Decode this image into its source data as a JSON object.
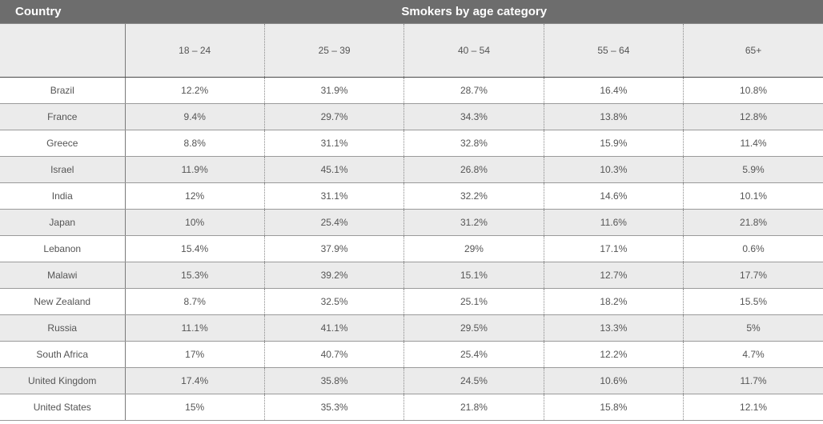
{
  "chart_data": {
    "type": "table",
    "title": "Smokers by age category",
    "row_header_label": "Country",
    "columns": [
      "18 – 24",
      "25 – 39",
      "40 – 54",
      "55 – 64",
      "65+"
    ],
    "rows": [
      {
        "country": "Brazil",
        "values": [
          "12.2%",
          "31.9%",
          "28.7%",
          "16.4%",
          "10.8%"
        ]
      },
      {
        "country": "France",
        "values": [
          "9.4%",
          "29.7%",
          "34.3%",
          "13.8%",
          "12.8%"
        ]
      },
      {
        "country": "Greece",
        "values": [
          "8.8%",
          "31.1%",
          "32.8%",
          "15.9%",
          "11.4%"
        ]
      },
      {
        "country": "Israel",
        "values": [
          "11.9%",
          "45.1%",
          "26.8%",
          "10.3%",
          "5.9%"
        ]
      },
      {
        "country": "India",
        "values": [
          "12%",
          "31.1%",
          "32.2%",
          "14.6%",
          "10.1%"
        ]
      },
      {
        "country": "Japan",
        "values": [
          "10%",
          "25.4%",
          "31.2%",
          "11.6%",
          "21.8%"
        ]
      },
      {
        "country": "Lebanon",
        "values": [
          "15.4%",
          "37.9%",
          "29%",
          "17.1%",
          "0.6%"
        ]
      },
      {
        "country": "Malawi",
        "values": [
          "15.3%",
          "39.2%",
          "15.1%",
          "12.7%",
          "17.7%"
        ]
      },
      {
        "country": "New Zealand",
        "values": [
          "8.7%",
          "32.5%",
          "25.1%",
          "18.2%",
          "15.5%"
        ]
      },
      {
        "country": "Russia",
        "values": [
          "11.1%",
          "41.1%",
          "29.5%",
          "13.3%",
          "5%"
        ]
      },
      {
        "country": "South Africa",
        "values": [
          "17%",
          "40.7%",
          "25.4%",
          "12.2%",
          "4.7%"
        ]
      },
      {
        "country": "United Kingdom",
        "values": [
          "17.4%",
          "35.8%",
          "24.5%",
          "10.6%",
          "11.7%"
        ]
      },
      {
        "country": "United States",
        "values": [
          "15%",
          "35.3%",
          "21.8%",
          "15.8%",
          "12.1%"
        ]
      }
    ],
    "colors": {
      "header_bg": "#6d6d6d",
      "header_text": "#ffffff",
      "subheader_bg": "#ececec",
      "alt_row_bg": "#ebebeb",
      "row_bg": "#ffffff",
      "cell_text": "#555555"
    }
  }
}
